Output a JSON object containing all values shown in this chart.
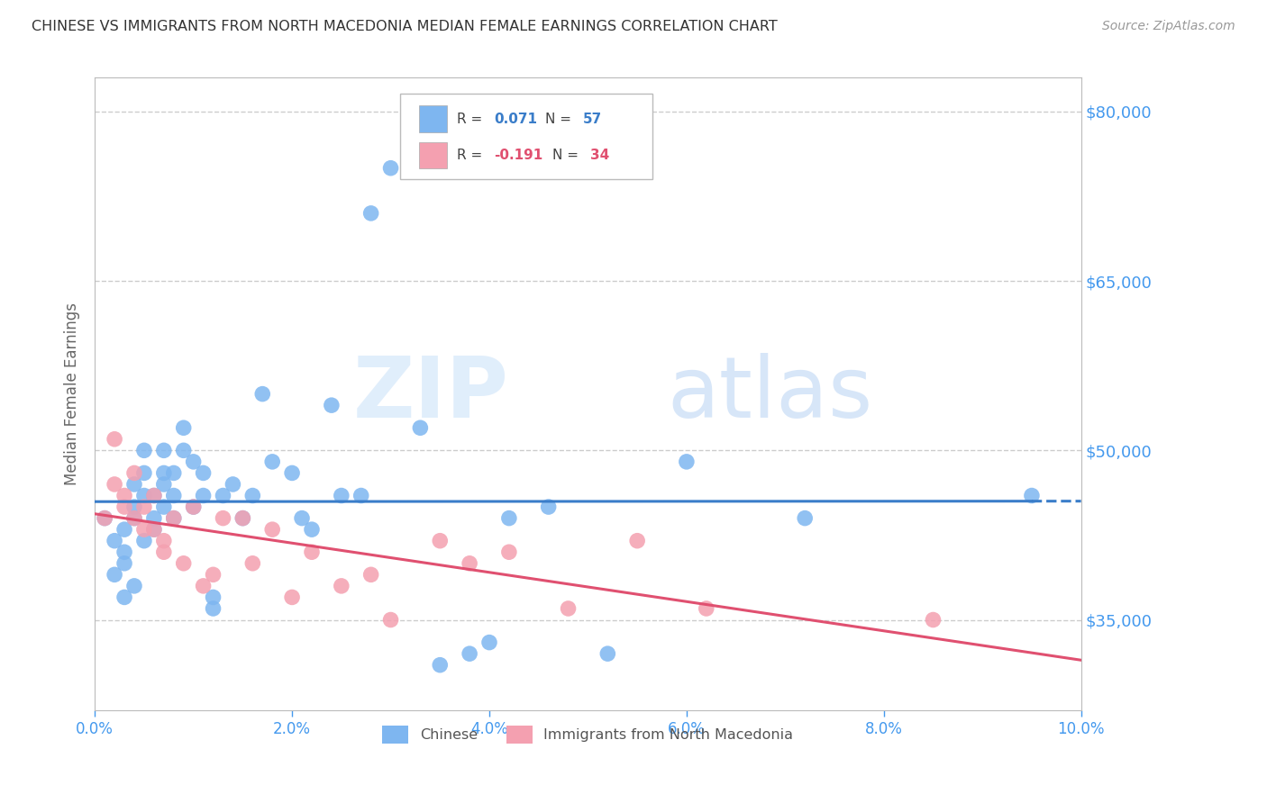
{
  "title": "CHINESE VS IMMIGRANTS FROM NORTH MACEDONIA MEDIAN FEMALE EARNINGS CORRELATION CHART",
  "source": "Source: ZipAtlas.com",
  "ylabel": "Median Female Earnings",
  "xlim": [
    0.0,
    0.1
  ],
  "ylim": [
    27000,
    83000
  ],
  "xtick_labels": [
    "0.0%",
    "2.0%",
    "4.0%",
    "6.0%",
    "8.0%",
    "10.0%"
  ],
  "xtick_vals": [
    0.0,
    0.02,
    0.04,
    0.06,
    0.08,
    0.1
  ],
  "ytick_vals": [
    35000,
    50000,
    65000,
    80000
  ],
  "ytick_right_labels": [
    "$35,000",
    "$50,000",
    "$65,000",
    "$80,000"
  ],
  "color_chinese": "#7EB6F0",
  "color_macedonia": "#F4A0B0",
  "line_color_chinese": "#3A7DC9",
  "line_color_macedonia": "#E05070",
  "r_chinese": 0.071,
  "n_chinese": 57,
  "r_macedonia": -0.191,
  "n_macedonia": 34,
  "watermark_zip": "ZIP",
  "watermark_atlas": "atlas",
  "background_color": "#FFFFFF",
  "grid_color": "#CCCCCC",
  "axis_color": "#BBBBBB",
  "label_color": "#4499EE",
  "title_color": "#333333",
  "chinese_x": [
    0.001,
    0.002,
    0.002,
    0.003,
    0.003,
    0.003,
    0.003,
    0.004,
    0.004,
    0.004,
    0.004,
    0.005,
    0.005,
    0.005,
    0.005,
    0.006,
    0.006,
    0.006,
    0.007,
    0.007,
    0.007,
    0.007,
    0.008,
    0.008,
    0.008,
    0.009,
    0.009,
    0.01,
    0.01,
    0.011,
    0.011,
    0.012,
    0.012,
    0.013,
    0.014,
    0.015,
    0.016,
    0.017,
    0.018,
    0.02,
    0.021,
    0.022,
    0.024,
    0.025,
    0.027,
    0.028,
    0.03,
    0.033,
    0.035,
    0.038,
    0.04,
    0.042,
    0.046,
    0.052,
    0.06,
    0.072,
    0.095
  ],
  "chinese_y": [
    44000,
    42000,
    39000,
    40000,
    43000,
    37000,
    41000,
    38000,
    44000,
    45000,
    47000,
    42000,
    46000,
    50000,
    48000,
    43000,
    46000,
    44000,
    48000,
    50000,
    45000,
    47000,
    46000,
    48000,
    44000,
    50000,
    52000,
    45000,
    49000,
    46000,
    48000,
    36000,
    37000,
    46000,
    47000,
    44000,
    46000,
    55000,
    49000,
    48000,
    44000,
    43000,
    54000,
    46000,
    46000,
    71000,
    75000,
    52000,
    31000,
    32000,
    33000,
    44000,
    45000,
    32000,
    49000,
    44000,
    46000
  ],
  "macedonia_x": [
    0.001,
    0.002,
    0.002,
    0.003,
    0.003,
    0.004,
    0.004,
    0.005,
    0.005,
    0.006,
    0.006,
    0.007,
    0.007,
    0.008,
    0.009,
    0.01,
    0.011,
    0.012,
    0.013,
    0.015,
    0.016,
    0.018,
    0.02,
    0.022,
    0.025,
    0.028,
    0.03,
    0.035,
    0.038,
    0.042,
    0.048,
    0.055,
    0.062,
    0.085
  ],
  "macedonia_y": [
    44000,
    51000,
    47000,
    45000,
    46000,
    48000,
    44000,
    45000,
    43000,
    43000,
    46000,
    42000,
    41000,
    44000,
    40000,
    45000,
    38000,
    39000,
    44000,
    44000,
    40000,
    43000,
    37000,
    41000,
    38000,
    39000,
    35000,
    42000,
    40000,
    41000,
    36000,
    42000,
    36000,
    35000
  ]
}
